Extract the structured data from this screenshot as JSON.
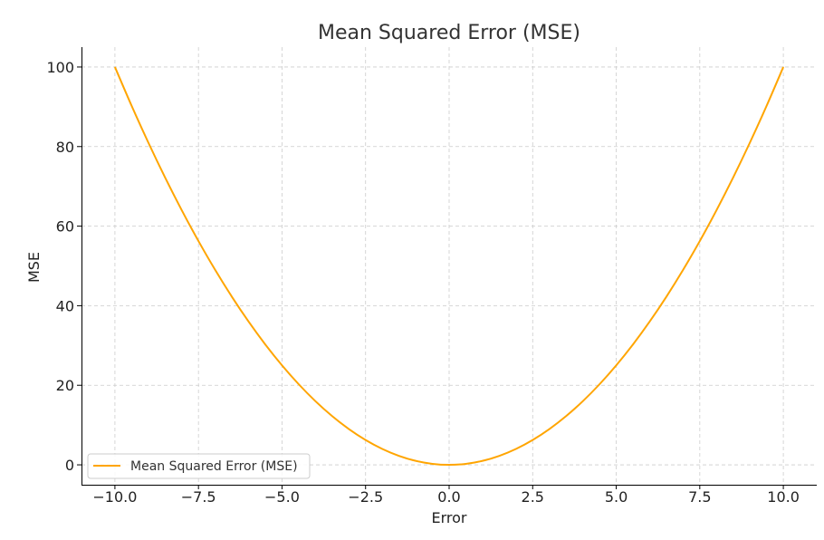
{
  "chart_data": {
    "type": "line",
    "title": "Mean Squared Error (MSE)",
    "xlabel": "Error",
    "ylabel": "MSE",
    "xlim": [
      -11,
      11
    ],
    "ylim": [
      -5,
      105
    ],
    "grid": true,
    "legend_position": "bottom-left",
    "x_ticks": [
      -10.0,
      -7.5,
      -5.0,
      -2.5,
      0.0,
      2.5,
      5.0,
      7.5,
      10.0
    ],
    "x_tick_labels": [
      "−10.0",
      "−7.5",
      "−5.0",
      "−2.5",
      "0.0",
      "2.5",
      "5.0",
      "7.5",
      "10.0"
    ],
    "y_ticks": [
      0,
      20,
      40,
      60,
      80,
      100
    ],
    "y_tick_labels": [
      "0",
      "20",
      "40",
      "60",
      "80",
      "100"
    ],
    "series": [
      {
        "name": "Mean Squared Error (MSE)",
        "color": "#FFA500",
        "x": [
          -10,
          -9.5,
          -9,
          -8.5,
          -8,
          -7.5,
          -7,
          -6.5,
          -6,
          -5.5,
          -5,
          -4.5,
          -4,
          -3.5,
          -3,
          -2.5,
          -2,
          -1.5,
          -1,
          -0.5,
          0,
          0.5,
          1,
          1.5,
          2,
          2.5,
          3,
          3.5,
          4,
          4.5,
          5,
          5.5,
          6,
          6.5,
          7,
          7.5,
          8,
          8.5,
          9,
          9.5,
          10
        ],
        "y": [
          100,
          90.25,
          81,
          72.25,
          64,
          56.25,
          49,
          42.25,
          36,
          30.25,
          25,
          20.25,
          16,
          12.25,
          9,
          6.25,
          4,
          2.25,
          1,
          0.25,
          0,
          0.25,
          1,
          2.25,
          4,
          6.25,
          9,
          12.25,
          16,
          20.25,
          25,
          30.25,
          36,
          42.25,
          49,
          56.25,
          64,
          72.25,
          81,
          90.25,
          100
        ]
      }
    ]
  }
}
